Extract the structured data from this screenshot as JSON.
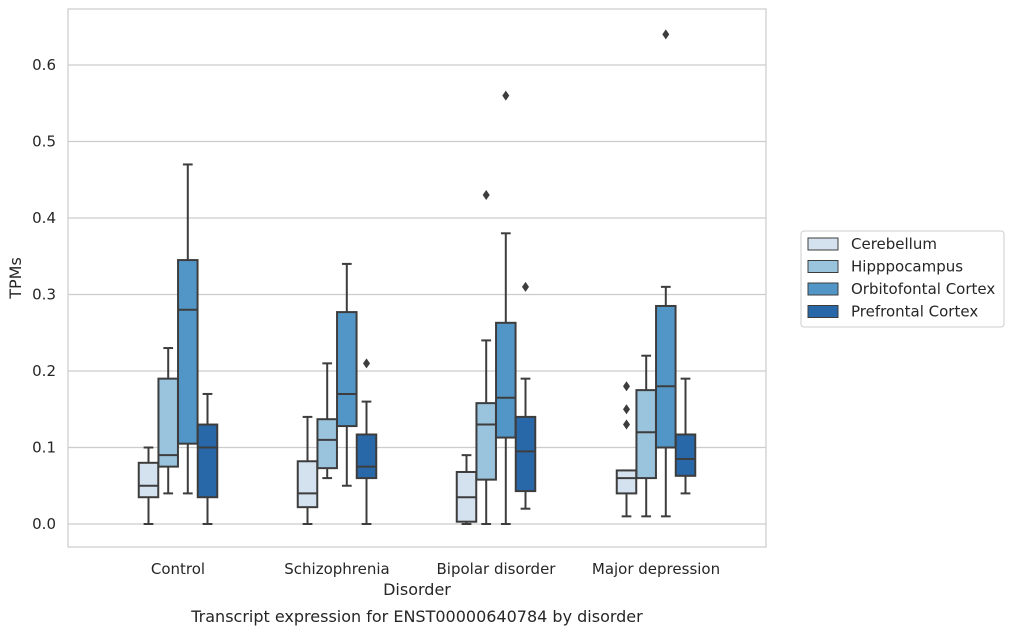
{
  "chart_data": {
    "type": "box",
    "title": "",
    "caption": "Transcript expression for ENST00000640784 by disorder",
    "xlabel": "Disorder",
    "ylabel": "TPMs",
    "ylim": [
      -0.032,
      0.67
    ],
    "yticks": [
      0.0,
      0.1,
      0.2,
      0.3,
      0.4,
      0.5,
      0.6
    ],
    "ytick_labels": [
      "0.0",
      "0.1",
      "0.2",
      "0.3",
      "0.4",
      "0.5",
      "0.6"
    ],
    "grid": "horizontal",
    "legend_position": "right",
    "categories": [
      "Control",
      "Schizophrenia",
      "Bipolar disorder",
      "Major depression"
    ],
    "series": [
      {
        "name": "Cerebellum",
        "color": "#d4e2f0",
        "boxes": [
          {
            "whislo": 0.0,
            "q1": 0.035,
            "med": 0.05,
            "q3": 0.08,
            "whishi": 0.1,
            "fliers": []
          },
          {
            "whislo": 0.0,
            "q1": 0.022,
            "med": 0.04,
            "q3": 0.082,
            "whishi": 0.14,
            "fliers": []
          },
          {
            "whislo": 0.0,
            "q1": 0.003,
            "med": 0.035,
            "q3": 0.068,
            "whishi": 0.09,
            "fliers": []
          },
          {
            "whislo": 0.01,
            "q1": 0.04,
            "med": 0.06,
            "q3": 0.07,
            "whishi": 0.07,
            "fliers": [
              0.13,
              0.15,
              0.18
            ]
          }
        ]
      },
      {
        "name": "Hipppocampus",
        "color": "#9ac4dd",
        "boxes": [
          {
            "whislo": 0.04,
            "q1": 0.075,
            "med": 0.09,
            "q3": 0.19,
            "whishi": 0.23,
            "fliers": []
          },
          {
            "whislo": 0.06,
            "q1": 0.073,
            "med": 0.11,
            "q3": 0.137,
            "whishi": 0.21,
            "fliers": []
          },
          {
            "whislo": 0.0,
            "q1": 0.058,
            "med": 0.13,
            "q3": 0.158,
            "whishi": 0.24,
            "fliers": [
              0.43
            ]
          },
          {
            "whislo": 0.01,
            "q1": 0.06,
            "med": 0.12,
            "q3": 0.175,
            "whishi": 0.22,
            "fliers": []
          }
        ]
      },
      {
        "name": "Orbitofontal Cortex",
        "color": "#5296c8",
        "boxes": [
          {
            "whislo": 0.04,
            "q1": 0.105,
            "med": 0.28,
            "q3": 0.345,
            "whishi": 0.47,
            "fliers": []
          },
          {
            "whislo": 0.05,
            "q1": 0.128,
            "med": 0.17,
            "q3": 0.277,
            "whishi": 0.34,
            "fliers": []
          },
          {
            "whislo": 0.0,
            "q1": 0.113,
            "med": 0.165,
            "q3": 0.263,
            "whishi": 0.38,
            "fliers": [
              0.56
            ]
          },
          {
            "whislo": 0.01,
            "q1": 0.1,
            "med": 0.18,
            "q3": 0.285,
            "whishi": 0.31,
            "fliers": [
              0.64
            ]
          }
        ]
      },
      {
        "name": "Prefrontal Cortex",
        "color": "#2868a8",
        "boxes": [
          {
            "whislo": 0.0,
            "q1": 0.035,
            "med": 0.1,
            "q3": 0.13,
            "whishi": 0.17,
            "fliers": []
          },
          {
            "whislo": 0.0,
            "q1": 0.06,
            "med": 0.075,
            "q3": 0.117,
            "whishi": 0.16,
            "fliers": [
              0.21
            ]
          },
          {
            "whislo": 0.02,
            "q1": 0.043,
            "med": 0.095,
            "q3": 0.14,
            "whishi": 0.19,
            "fliers": [
              0.31
            ]
          },
          {
            "whislo": 0.04,
            "q1": 0.063,
            "med": 0.085,
            "q3": 0.117,
            "whishi": 0.19,
            "fliers": []
          }
        ]
      }
    ]
  }
}
